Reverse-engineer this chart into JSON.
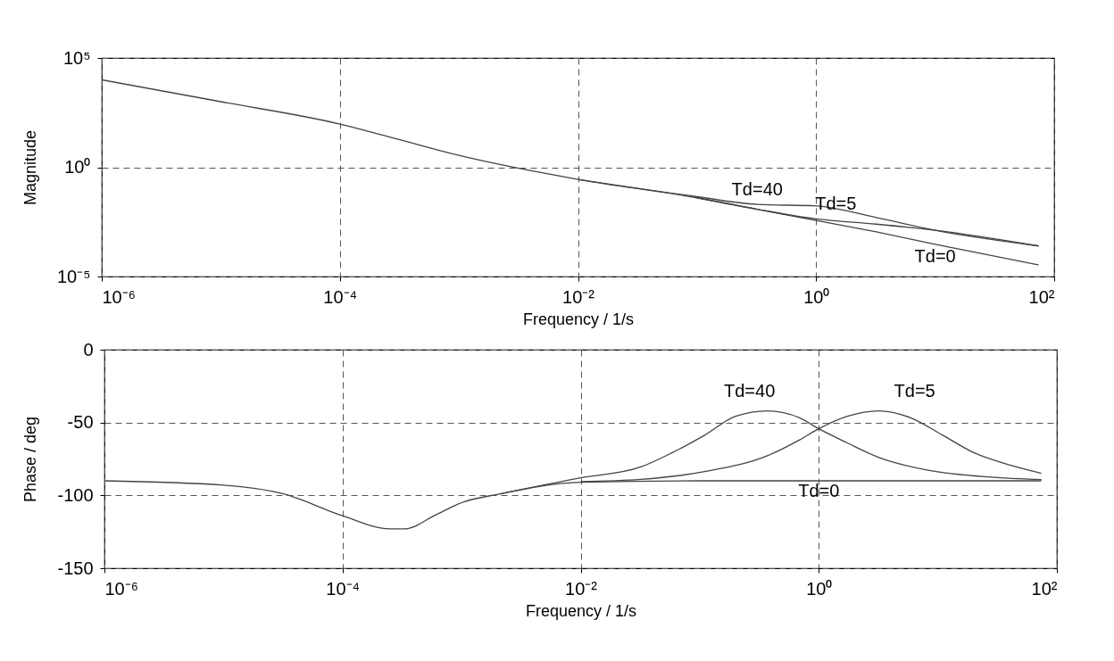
{
  "chart_data": [
    {
      "type": "line",
      "xlabel": "Frequency / 1/s",
      "ylabel": "Magnitude",
      "log": "xy",
      "grid": true,
      "legend": false,
      "line_style": "solid",
      "marker": "none",
      "xlim": [
        1e-06,
        100
      ],
      "ylim": [
        1e-05,
        100000
      ],
      "xticks": [
        {
          "value": 1e-06,
          "label": "10⁻⁶"
        },
        {
          "value": 0.0001,
          "label": "10⁻⁴"
        },
        {
          "value": 0.01,
          "label": "10⁻²"
        },
        {
          "value": 1,
          "label": "10⁰"
        },
        {
          "value": 100,
          "label": "10²"
        }
      ],
      "yticks": [
        {
          "value": 1e-05,
          "label": "10⁻⁵"
        },
        {
          "value": 1,
          "label": "10⁰"
        },
        {
          "value": 100000,
          "label": "10⁵"
        }
      ],
      "series": [
        {
          "name": "Td=40",
          "color": "#444444",
          "x": [
            0.01,
            0.1,
            0.32,
            1,
            3.2,
            10,
            74
          ],
          "values": [
            0.28,
            0.045,
            0.02,
            0.017,
            0.005,
            0.0013,
            0.00025
          ]
        },
        {
          "name": "Td=5",
          "color": "#444444",
          "x": [
            0.1,
            0.32,
            1,
            3.2,
            10,
            74
          ],
          "values": [
            0.04,
            0.012,
            0.0043,
            0.0025,
            0.0013,
            0.00025
          ]
        },
        {
          "name": "Td=0",
          "color": "#444444",
          "x": [
            1e-06,
            1e-05,
            0.0001,
            0.00032,
            0.001,
            0.01,
            0.1,
            0.32,
            1,
            3.2,
            10,
            74
          ],
          "values": [
            10000,
            1000,
            95,
            18,
            3.5,
            0.28,
            0.04,
            0.012,
            0.0037,
            0.0011,
            0.0003,
            3.4e-05
          ]
        }
      ]
    },
    {
      "type": "line",
      "xlabel": "Frequency / 1/s",
      "ylabel": "Phase / deg",
      "log": "x",
      "grid": true,
      "legend": false,
      "line_style": "solid",
      "marker": "none",
      "xlim": [
        1e-06,
        100
      ],
      "ylim": [
        -150,
        0
      ],
      "xticks": [
        {
          "value": 1e-06,
          "label": "10⁻⁶"
        },
        {
          "value": 0.0001,
          "label": "10⁻⁴"
        },
        {
          "value": 0.01,
          "label": "10⁻²"
        },
        {
          "value": 1,
          "label": "10⁰"
        },
        {
          "value": 100,
          "label": "10²"
        }
      ],
      "yticks": [
        -150,
        -100,
        -50,
        0
      ],
      "series": [
        {
          "name": "Td=40",
          "color": "#444444",
          "x": [
            0.0021,
            0.01,
            0.032,
            0.059,
            0.11,
            0.2,
            0.37,
            0.69,
            1,
            1.74,
            3.2,
            8.1,
            28,
            74
          ],
          "values": [
            -99,
            -88,
            -80.5,
            -70.6,
            -58.7,
            -45.7,
            -42,
            -46.7,
            -54.3,
            -64,
            -74,
            -82.6,
            -87.5,
            -89.2
          ]
        },
        {
          "name": "Td=5",
          "color": "#444444",
          "x": [
            0.01,
            0.032,
            0.11,
            0.37,
            0.69,
            1,
            1.74,
            3.2,
            5.9,
            11,
            20,
            37,
            74
          ],
          "values": [
            -90.5,
            -89,
            -83.7,
            -72.8,
            -61.9,
            -54.3,
            -45.7,
            -42,
            -46.7,
            -58.7,
            -70.6,
            -78.3,
            -84.8
          ]
        },
        {
          "name": "Td=0",
          "color": "#444444",
          "x": [
            1e-06,
            1e-05,
            3.2e-05,
            0.0001,
            0.00025,
            0.00033,
            0.00062,
            0.001,
            0.0021,
            0.01,
            0.1,
            1,
            10,
            74
          ],
          "values": [
            -90,
            -93,
            -99,
            -114,
            -123,
            -123,
            -113,
            -105,
            -99,
            -91,
            -90,
            -90,
            -90,
            -90
          ]
        }
      ]
    }
  ]
}
